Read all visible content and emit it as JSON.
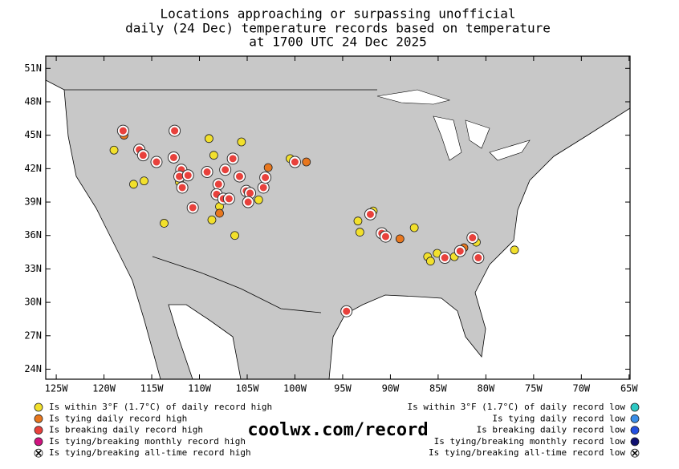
{
  "chart_data": {
    "type": "scatter",
    "title": [
      "Locations approaching or surpassing unofficial",
      "daily (24 Dec) temperature records based on temperature",
      "at 1700 UTC 24 Dec 2025"
    ],
    "xlim": [
      -126.1,
      -64.9
    ],
    "ylim": [
      23.1,
      52.1
    ],
    "xticks": [
      {
        "value": -125,
        "label": "125W"
      },
      {
        "value": -120,
        "label": "120W"
      },
      {
        "value": -115,
        "label": "115W"
      },
      {
        "value": -110,
        "label": "110W"
      },
      {
        "value": -105,
        "label": "105W"
      },
      {
        "value": -100,
        "label": "100W"
      },
      {
        "value": -95,
        "label": "95W"
      },
      {
        "value": -90,
        "label": "90W"
      },
      {
        "value": -85,
        "label": "85W"
      },
      {
        "value": -80,
        "label": "80W"
      },
      {
        "value": -75,
        "label": "75W"
      },
      {
        "value": -70,
        "label": "70W"
      },
      {
        "value": -65,
        "label": "65W"
      }
    ],
    "yticks": [
      {
        "value": 24,
        "label": "24N"
      },
      {
        "value": 27,
        "label": "27N"
      },
      {
        "value": 30,
        "label": "30N"
      },
      {
        "value": 33,
        "label": "33N"
      },
      {
        "value": 36,
        "label": "36N"
      },
      {
        "value": 39,
        "label": "39N"
      },
      {
        "value": 42,
        "label": "42N"
      },
      {
        "value": 45,
        "label": "45N"
      },
      {
        "value": 48,
        "label": "48N"
      },
      {
        "value": 51,
        "label": "51N"
      }
    ],
    "series": [
      {
        "name": "Is within 3°F (1.7°C) of daily record high",
        "color": "#f2e02c",
        "x": [
          -118.95,
          -116.9,
          -115.8,
          -113.7,
          -112.1,
          -109.0,
          -108.5,
          -105.6,
          -107.9,
          -108.7,
          -106.3,
          -103.8,
          -100.5,
          -93.4,
          -91.8,
          -93.2,
          -87.5,
          -86.1,
          -85.8,
          -85.1,
          -83.3,
          -81.0,
          -77.0
        ],
        "values": [
          43.66,
          40.6,
          40.9,
          37.1,
          40.8,
          44.7,
          43.2,
          44.4,
          38.6,
          37.4,
          36.0,
          39.2,
          42.9,
          37.3,
          38.2,
          36.3,
          36.7,
          34.1,
          33.7,
          34.4,
          34.1,
          35.4,
          34.7
        ]
      },
      {
        "name": "Is tying daily record high",
        "color": "#e8771e",
        "x": [
          -117.9,
          -102.8,
          -98.8,
          -107.9,
          -89.0,
          -82.3
        ],
        "values": [
          45.0,
          42.1,
          42.6,
          38.0,
          35.7,
          34.9
        ]
      },
      {
        "name": "Is breaking daily record high",
        "color": "#e8413c",
        "x": [
          -118.0,
          -112.6,
          -116.3,
          -115.9,
          -114.5,
          -112.7,
          -111.9,
          -112.1,
          -111.2,
          -111.8,
          -109.2,
          -107.3,
          -106.5,
          -105.8,
          -108.0,
          -108.2,
          -107.5,
          -106.9,
          -105.1,
          -104.7,
          -104.9,
          -103.3,
          -103.1,
          -110.7,
          -100.0,
          -92.1,
          -90.9,
          -90.5,
          -84.3,
          -82.7,
          -81.4,
          -80.8,
          -94.6
        ],
        "values": [
          45.4,
          45.4,
          43.7,
          43.2,
          42.6,
          43.0,
          41.9,
          41.3,
          41.4,
          40.3,
          41.7,
          41.9,
          42.9,
          41.3,
          40.6,
          39.7,
          39.3,
          39.3,
          40.0,
          39.8,
          39.0,
          40.3,
          41.2,
          38.5,
          42.6,
          37.9,
          36.2,
          35.9,
          34.0,
          34.6,
          35.8,
          34.0,
          29.2
        ]
      },
      {
        "name": "Is tying/breaking monthly record high",
        "color": "#d0127f",
        "x": [],
        "values": []
      },
      {
        "name": "Is tying/breaking all-time record high",
        "color": "#ffffff",
        "x": [],
        "values": []
      },
      {
        "name": "Is within 3°F (1.7°C) of daily record low",
        "color": "#2ec9c4",
        "x": [],
        "values": []
      },
      {
        "name": "Is tying daily record low",
        "color": "#3a8ee8",
        "x": [],
        "values": []
      },
      {
        "name": "Is breaking daily record low",
        "color": "#2450e0",
        "x": [],
        "values": []
      },
      {
        "name": "Is tying/breaking monthly record low",
        "color": "#101070",
        "x": [],
        "values": []
      },
      {
        "name": "Is tying/breaking all-time record low",
        "color": "#ffffff",
        "x": [],
        "values": []
      }
    ],
    "footer": "coolwx.com/record"
  }
}
